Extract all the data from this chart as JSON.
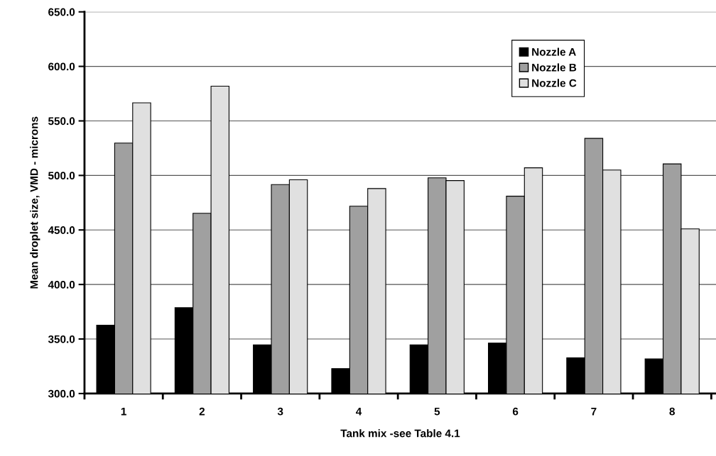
{
  "chart_data": {
    "type": "bar",
    "xlabel": "Tank mix -see Table 4.1",
    "ylabel": "Mean droplet size, VMD - microns",
    "categories": [
      "1",
      "2",
      "3",
      "4",
      "5",
      "6",
      "7",
      "8"
    ],
    "series": [
      {
        "name": "Nozzle A",
        "color": "#000000",
        "values": [
          362.6,
          378.7,
          344.6,
          322.8,
          344.6,
          346.3,
          332.7,
          331.7
        ]
      },
      {
        "name": "Nozzle B",
        "color": "#a0a0a0",
        "values": [
          529.7,
          465.3,
          491.6,
          471.8,
          497.8,
          481.0,
          534.0,
          510.6
        ]
      },
      {
        "name": "Nozzle C",
        "color": "#e0e0e0",
        "values": [
          566.6,
          581.9,
          496.0,
          488.0,
          495.3,
          507.0,
          505.0,
          451.0
        ]
      }
    ],
    "ylim": [
      300,
      650
    ],
    "yticks": [
      {
        "value": 300,
        "label": "300.0"
      },
      {
        "value": 350,
        "label": "350.0"
      },
      {
        "value": 400,
        "label": "400.0"
      },
      {
        "value": 450,
        "label": "450.0"
      },
      {
        "value": 500,
        "label": "500.0"
      },
      {
        "value": 550,
        "label": "550.0"
      },
      {
        "value": 600,
        "label": "600.0"
      },
      {
        "value": 650,
        "label": "650.0"
      }
    ],
    "grid": "y",
    "legend": "top right"
  }
}
